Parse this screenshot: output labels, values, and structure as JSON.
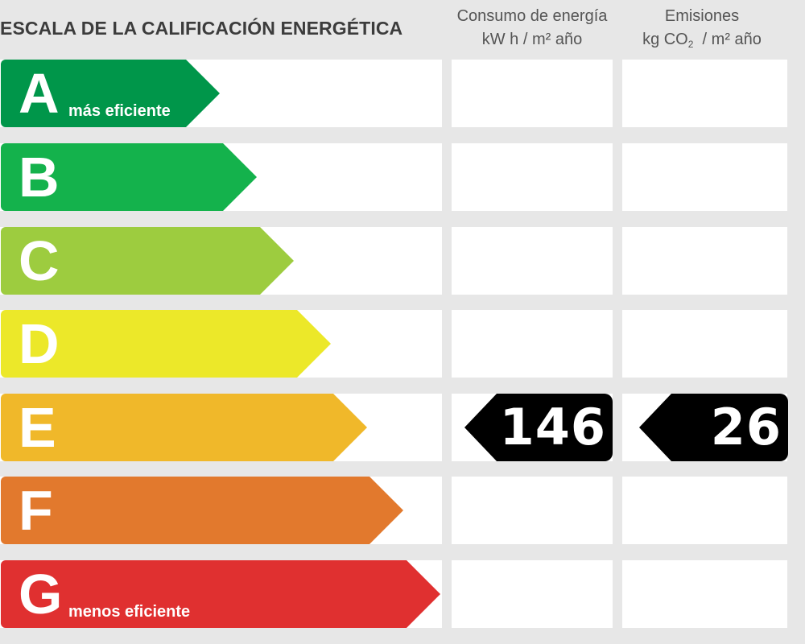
{
  "title": "ESCALA DE LA CALIFICACIÓN ENERGÉTICA",
  "headers": {
    "energy": {
      "line1": "Consumo de energía",
      "line2": "kW h  / m² año"
    },
    "emissions": {
      "line1": "Emisiones",
      "line2_prefix": "kg CO",
      "line2_sub": "2",
      "line2_suffix": "  / m² año"
    }
  },
  "ratings": [
    {
      "letter": "A",
      "label": "más eficiente",
      "color": "#00964a"
    },
    {
      "letter": "B",
      "label": "",
      "color": "#14b24c"
    },
    {
      "letter": "C",
      "label": "",
      "color": "#9dcc3f"
    },
    {
      "letter": "D",
      "label": "",
      "color": "#ece829"
    },
    {
      "letter": "E",
      "label": "",
      "color": "#f0b82a"
    },
    {
      "letter": "F",
      "label": "",
      "color": "#e2792d"
    },
    {
      "letter": "G",
      "label": "menos eficiente",
      "color": "#e03030"
    }
  ],
  "result": {
    "rating": "E",
    "energy_value": "146",
    "emissions_value": "26"
  }
}
